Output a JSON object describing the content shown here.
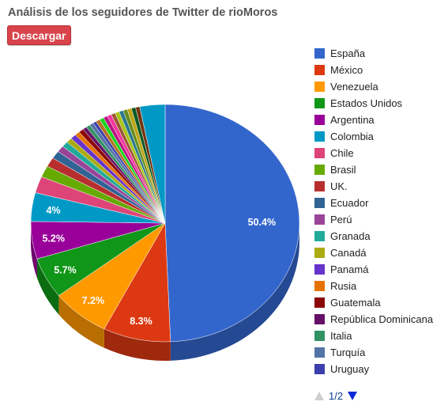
{
  "header": {
    "title": "Análisis de los seguidores de Twitter de rioMoros",
    "download_label": "Descargar"
  },
  "pager": {
    "text": "1/2"
  },
  "chart_data": {
    "type": "pie",
    "style": "3d",
    "title": "Análisis de los seguidores de Twitter de rioMoros",
    "legend_position": "right",
    "slices": [
      {
        "label": "España",
        "value": 50.4,
        "color": "#3366cc",
        "show_label": true
      },
      {
        "label": "México",
        "value": 8.3,
        "color": "#dc3912",
        "show_label": true
      },
      {
        "label": "Venezuela",
        "value": 7.2,
        "color": "#ff9900",
        "show_label": true
      },
      {
        "label": "Estados Unidos",
        "value": 5.7,
        "color": "#109618",
        "show_label": true
      },
      {
        "label": "Argentina",
        "value": 5.2,
        "color": "#990099",
        "show_label": true
      },
      {
        "label": "Colombia",
        "value": 4.0,
        "color": "#0099c6",
        "show_label": true
      },
      {
        "label": "Chile",
        "value": 2.3,
        "color": "#dd4477",
        "show_label": false
      },
      {
        "label": "Brasil",
        "value": 1.6,
        "color": "#66aa00",
        "show_label": false
      },
      {
        "label": "UK.",
        "value": 1.3,
        "color": "#b82e2e",
        "show_label": false
      },
      {
        "label": "Ecuador",
        "value": 1.1,
        "color": "#316395",
        "show_label": false
      },
      {
        "label": "Perú",
        "value": 0.9,
        "color": "#994499",
        "show_label": false
      },
      {
        "label": "Granada",
        "value": 0.8,
        "color": "#22aa99",
        "show_label": false
      },
      {
        "label": "Canadá",
        "value": 0.7,
        "color": "#aaaa11",
        "show_label": false
      },
      {
        "label": "Panamá",
        "value": 0.7,
        "color": "#6633cc",
        "show_label": false
      },
      {
        "label": "Rusia",
        "value": 0.6,
        "color": "#e67300",
        "show_label": false
      },
      {
        "label": "Guatemala",
        "value": 0.6,
        "color": "#8b0707",
        "show_label": false
      },
      {
        "label": "República Dominicana",
        "value": 0.5,
        "color": "#651067",
        "show_label": false
      },
      {
        "label": "Italia",
        "value": 0.5,
        "color": "#329262",
        "show_label": false
      },
      {
        "label": "Turquía",
        "value": 0.5,
        "color": "#5574a6",
        "show_label": false
      },
      {
        "label": "Uruguay",
        "value": 0.4,
        "color": "#3b3eac",
        "show_label": false
      }
    ],
    "other_slice_colors": [
      "#b77322",
      "#16d620",
      "#b91383",
      "#f4359e",
      "#9c5935",
      "#a9c413",
      "#2a778d",
      "#668d1c",
      "#bea413",
      "#0c5922",
      "#743411"
    ],
    "other_total": 5.7,
    "final_slice": {
      "value": 3.1,
      "color": "#0099c6"
    }
  }
}
